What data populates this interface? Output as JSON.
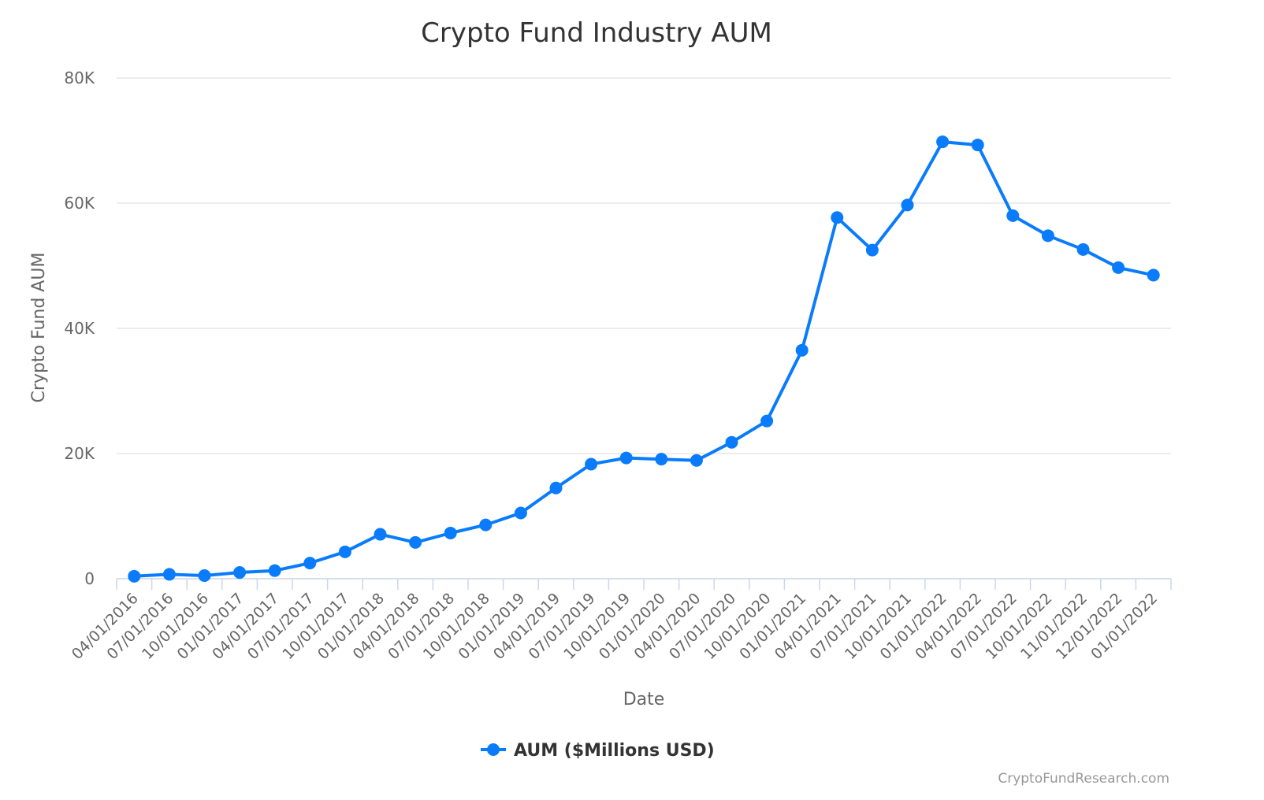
{
  "chart_data": {
    "type": "line",
    "title": "Crypto Fund Industry AUM",
    "xlabel": "Date",
    "ylabel": "Crypto Fund AUM",
    "ylim": [
      0,
      80000
    ],
    "yticks": [
      "0",
      "20K",
      "40K",
      "60K",
      "80K"
    ],
    "ytick_values": [
      0,
      20000,
      40000,
      60000,
      80000
    ],
    "grid": true,
    "legend_position": "bottom-center",
    "categories": [
      "04/01/2016",
      "07/01/2016",
      "10/01/2016",
      "01/01/2017",
      "04/01/2017",
      "07/01/2017",
      "10/01/2017",
      "01/01/2018",
      "04/01/2018",
      "07/01/2018",
      "10/01/2018",
      "01/01/2019",
      "04/01/2019",
      "07/01/2019",
      "10/01/2019",
      "01/01/2020",
      "04/01/2020",
      "07/01/2020",
      "10/01/2020",
      "01/01/2021",
      "04/01/2021",
      "07/01/2021",
      "10/01/2021",
      "01/01/2022",
      "04/01/2022",
      "07/01/2022",
      "10/01/2022",
      "11/01/2022",
      "12/01/2022",
      "01/01/2022"
    ],
    "series": [
      {
        "name": "AUM ($Millions USD)",
        "color": "#0a7cfb",
        "values": [
          400,
          700,
          500,
          1000,
          1300,
          2500,
          4300,
          7100,
          5800,
          7300,
          8600,
          10500,
          14500,
          18300,
          19300,
          19100,
          18900,
          21800,
          25200,
          36500,
          57700,
          52500,
          59700,
          69800,
          69300,
          58000,
          54800,
          52600,
          49700,
          48500
        ]
      }
    ]
  },
  "credit": "CryptoFundResearch.com"
}
